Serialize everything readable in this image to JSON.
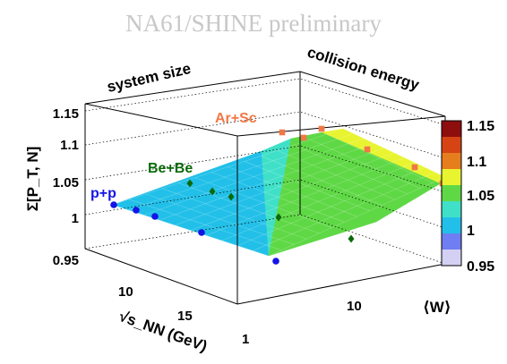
{
  "banner": "NA61/SHINE preliminary",
  "chart_data": {
    "type": "surface",
    "corner_labels": {
      "left": "system size",
      "right": "collision energy"
    },
    "zlabel": "Σ[P_T, N]",
    "xlabel": "√s_NN (GeV)",
    "ylabel": "⟨W⟩",
    "zlim": [
      0.95,
      1.15
    ],
    "z_ticks": [
      "0.95",
      "1",
      "1.05",
      "1.1",
      "1.15"
    ],
    "x_ticks": [
      "10",
      "15"
    ],
    "y_ticks": [
      "1",
      "10"
    ],
    "color_scale": {
      "ticks": [
        "0.95",
        "1",
        "1.05",
        "1.1",
        "1.15"
      ],
      "bands": [
        {
          "from": 0.95,
          "to": 0.975,
          "color": "#d4d0f4"
        },
        {
          "from": 0.975,
          "to": 1.0,
          "color": "#6f7ef2"
        },
        {
          "from": 1.0,
          "to": 1.025,
          "color": "#22c0e8"
        },
        {
          "from": 1.025,
          "to": 1.05,
          "color": "#40e0c8"
        },
        {
          "from": 1.05,
          "to": 1.075,
          "color": "#5fd846"
        },
        {
          "from": 1.075,
          "to": 1.1,
          "color": "#e8f430"
        },
        {
          "from": 1.1,
          "to": 1.125,
          "color": "#e67e1e"
        },
        {
          "from": 1.125,
          "to": 1.15,
          "color": "#d64414"
        },
        {
          "from": 1.15,
          "to": 1.175,
          "color": "#8e0e0e"
        }
      ]
    },
    "series": [
      {
        "name": "p+p",
        "color": "#1414e6",
        "marker": "circle",
        "points": [
          {
            "sqrt_s": 6.3,
            "z": 1.01
          },
          {
            "sqrt_s": 7.6,
            "z": 1.005
          },
          {
            "sqrt_s": 8.8,
            "z": 1.0
          },
          {
            "sqrt_s": 12.3,
            "z": 0.99
          },
          {
            "sqrt_s": 17.3,
            "z": 0.975
          }
        ]
      },
      {
        "name": "Be+Be",
        "color": "#0a6a0a",
        "marker": "diamond",
        "points": [
          {
            "sqrt_s": 8.8,
            "z": 1.065
          },
          {
            "sqrt_s": 12.3,
            "z": 1.055
          },
          {
            "sqrt_s": 16.8,
            "z": 1.05
          },
          {
            "sqrt_s": 16.8,
            "z": 1.015
          },
          {
            "sqrt_s": 16.8,
            "z": 0.995
          }
        ]
      },
      {
        "name": "Ar+Sc",
        "color": "#f07846",
        "marker": "square",
        "points": [
          {
            "sqrt_s": 6.3,
            "z": 1.125
          },
          {
            "sqrt_s": 7.6,
            "z": 1.13
          },
          {
            "sqrt_s": 8.8,
            "z": 1.135
          },
          {
            "sqrt_s": 12.3,
            "z": 1.095
          },
          {
            "sqrt_s": 16.8,
            "z": 1.075
          },
          {
            "sqrt_s": 17.3,
            "z": 1.06
          }
        ]
      }
    ],
    "surface_color_samples": [
      "#22c0e8",
      "#40e0c8",
      "#5fd846",
      "#e8f430"
    ]
  }
}
